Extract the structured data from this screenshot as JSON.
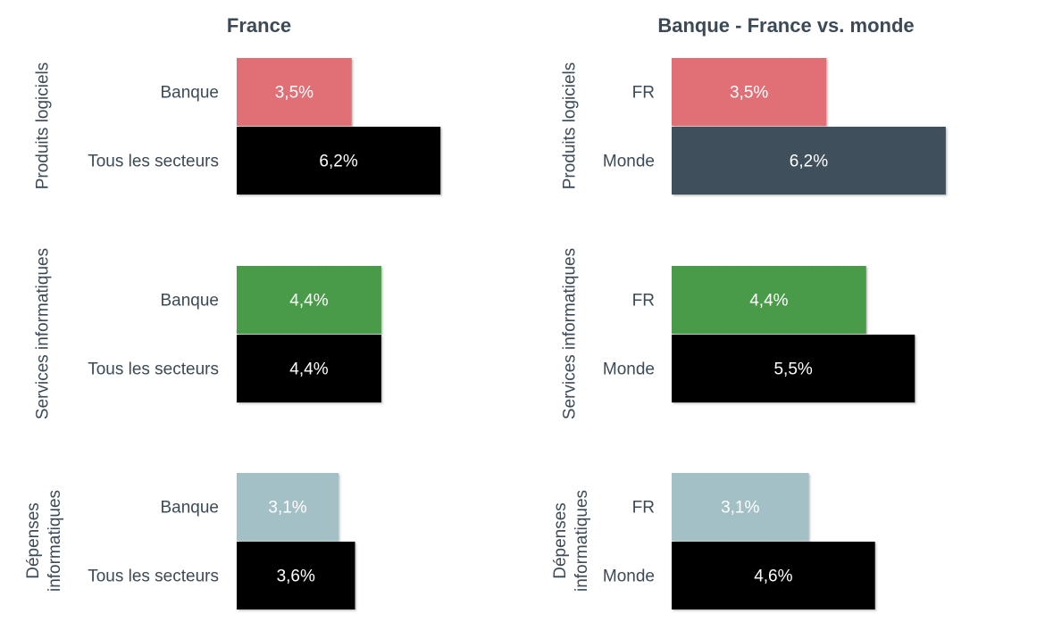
{
  "chart_data": [
    {
      "type": "bar",
      "orientation": "horizontal",
      "title": "France",
      "groups": [
        {
          "label": "Produits logiciels",
          "rows": [
            {
              "label": "Banque",
              "value": 3.5,
              "display": "3,5%",
              "color": "#e07075"
            },
            {
              "label": "Tous les secteurs",
              "value": 6.2,
              "display": "6,2%",
              "color": "#000000"
            }
          ]
        },
        {
          "label": "Services informatiques",
          "rows": [
            {
              "label": "Banque",
              "value": 4.4,
              "display": "4,4%",
              "color": "#4a9a48"
            },
            {
              "label": "Tous les secteurs",
              "value": 4.4,
              "display": "4,4%",
              "color": "#000000"
            }
          ]
        },
        {
          "label": "Dépenses informatiques",
          "label_lines": [
            "Dépenses",
            "informatiques"
          ],
          "rows": [
            {
              "label": "Banque",
              "value": 3.1,
              "display": "3,1%",
              "color": "#a3c0c6"
            },
            {
              "label": "Tous les secteurs",
              "value": 3.6,
              "display": "3,6%",
              "color": "#000000"
            }
          ]
        }
      ]
    },
    {
      "type": "bar",
      "orientation": "horizontal",
      "title": "Banque - France vs. monde",
      "groups": [
        {
          "label": "Produits logiciels",
          "rows": [
            {
              "label": "FR",
              "value": 3.5,
              "display": "3,5%",
              "color": "#e07075"
            },
            {
              "label": "Monde",
              "value": 6.2,
              "display": "6,2%",
              "color": "#3f4f5c"
            }
          ]
        },
        {
          "label": "Services informatiques",
          "rows": [
            {
              "label": "FR",
              "value": 4.4,
              "display": "4,4%",
              "color": "#4a9a48"
            },
            {
              "label": "Monde",
              "value": 5.5,
              "display": "5,5%",
              "color": "#000000"
            }
          ]
        },
        {
          "label": "Dépenses informatiques",
          "label_lines": [
            "Dépenses",
            "informatiques"
          ],
          "rows": [
            {
              "label": "FR",
              "value": 3.1,
              "display": "3,1%",
              "color": "#a3c0c6"
            },
            {
              "label": "Monde",
              "value": 4.6,
              "display": "4,6%",
              "color": "#000000"
            }
          ]
        }
      ]
    }
  ]
}
